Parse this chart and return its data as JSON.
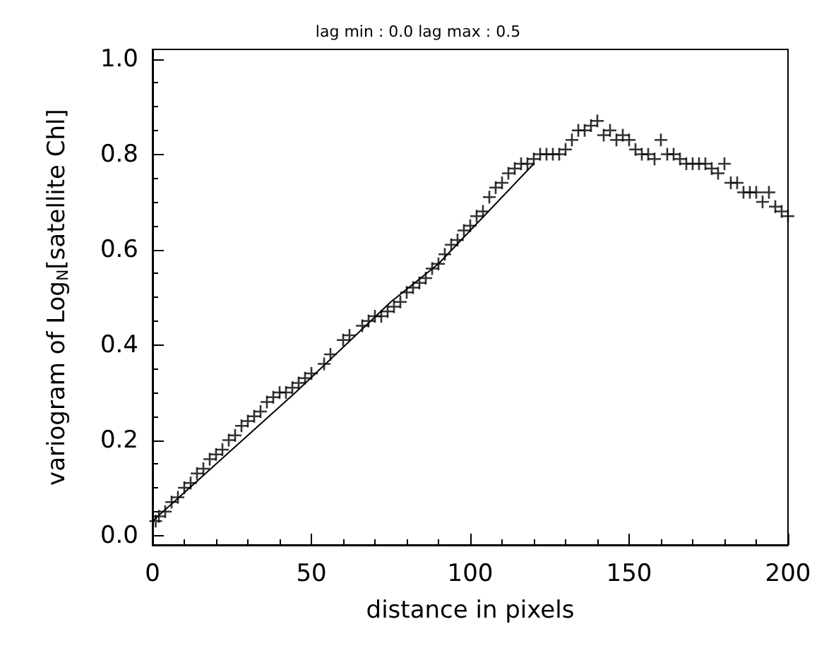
{
  "chart_data": {
    "type": "scatter",
    "title": "lag min : 0.0 lag max : 0.5",
    "xlabel": "distance in pixels",
    "ylabel": "variogram of Log$_{N}$[satellite Chl]",
    "xlim": [
      0,
      200
    ],
    "xticks": [
      0,
      50,
      100,
      150,
      200
    ],
    "ylim": [
      -0.02,
      1.02
    ],
    "yticks": [
      {
        "value": 0,
        "label": "0.0"
      },
      {
        "value": 0.2,
        "label": "0.2"
      },
      {
        "value": 0.4,
        "label": "0.4"
      },
      {
        "value": 0.6,
        "label": "0.6"
      },
      {
        "value": 0.8,
        "label": "0.8"
      },
      {
        "value": 1,
        "label": "1.0"
      }
    ],
    "grid": false,
    "series": [
      {
        "type": "scatter",
        "marker": "cross",
        "color": "#000000",
        "x": [
          1,
          2,
          4,
          6,
          8,
          10,
          12,
          14,
          16,
          18,
          20,
          22,
          24,
          26,
          28,
          30,
          32,
          34,
          36,
          38,
          40,
          42,
          44,
          46,
          48,
          50,
          54,
          56,
          60,
          62,
          66,
          68,
          70,
          72,
          74,
          76,
          78,
          80,
          82,
          84,
          86,
          88,
          90,
          92,
          94,
          96,
          98,
          100,
          102,
          104,
          106,
          108,
          110,
          112,
          114,
          116,
          118,
          120,
          122,
          124,
          126,
          128,
          130,
          132,
          134,
          136,
          138,
          140,
          142,
          144,
          146,
          148,
          150,
          152,
          154,
          156,
          158,
          160,
          162,
          164,
          166,
          168,
          170,
          172,
          174,
          176,
          178,
          180,
          182,
          184,
          186,
          188,
          190,
          192,
          194,
          196,
          198,
          200
        ],
        "values": [
          0.03,
          0.04,
          0.05,
          0.07,
          0.08,
          0.1,
          0.11,
          0.13,
          0.14,
          0.16,
          0.17,
          0.18,
          0.2,
          0.21,
          0.23,
          0.24,
          0.25,
          0.26,
          0.28,
          0.29,
          0.3,
          0.3,
          0.31,
          0.32,
          0.33,
          0.34,
          0.36,
          0.38,
          0.41,
          0.42,
          0.44,
          0.45,
          0.46,
          0.46,
          0.47,
          0.48,
          0.49,
          0.51,
          0.52,
          0.53,
          0.54,
          0.56,
          0.57,
          0.59,
          0.61,
          0.62,
          0.64,
          0.65,
          0.67,
          0.68,
          0.71,
          0.73,
          0.74,
          0.76,
          0.77,
          0.78,
          0.78,
          0.79,
          0.8,
          0.8,
          0.8,
          0.8,
          0.81,
          0.83,
          0.85,
          0.85,
          0.86,
          0.87,
          0.84,
          0.85,
          0.83,
          0.84,
          0.83,
          0.81,
          0.8,
          0.8,
          0.79,
          0.83,
          0.8,
          0.8,
          0.79,
          0.78,
          0.78,
          0.78,
          0.78,
          0.77,
          0.76,
          0.78,
          0.74,
          0.74,
          0.72,
          0.72,
          0.72,
          0.7,
          0.72,
          0.69,
          0.68,
          0.67
        ]
      },
      {
        "type": "line",
        "marker": "none",
        "line_style": "solid",
        "color": "#000000",
        "x": [
          0,
          30,
          45,
          75,
          90,
          120
        ],
        "values": [
          0.03,
          0.21,
          0.3,
          0.49,
          0.57,
          0.78
        ]
      }
    ]
  }
}
